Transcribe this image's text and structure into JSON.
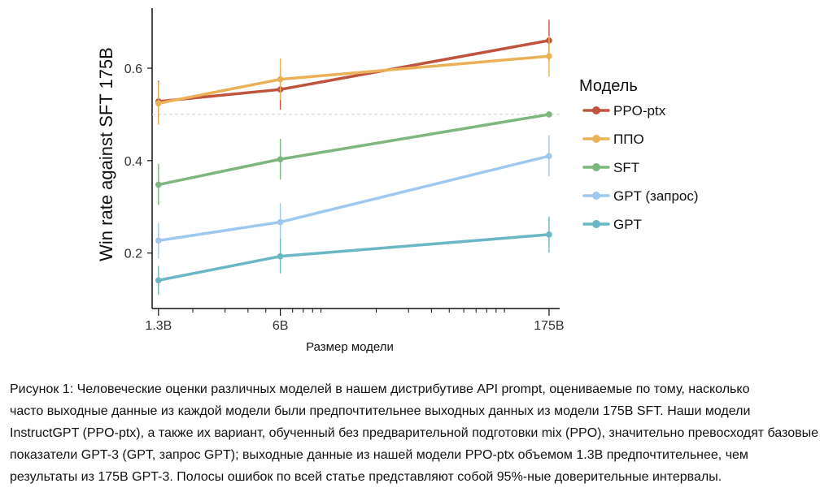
{
  "chart_data": {
    "type": "line",
    "title": "",
    "xlabel": "Размер модели",
    "ylabel": "Win rate against SFT 175B",
    "x_scale": "log",
    "x": [
      1.3,
      6,
      175
    ],
    "x_tick_labels": [
      "1.3B",
      "6B",
      "175B"
    ],
    "xlim": [
      1.2,
      200
    ],
    "y_ticks": [
      0.2,
      0.4,
      0.6
    ],
    "ylim": [
      0.08,
      0.73
    ],
    "reference_line": 0.5,
    "legend_title": "Модель",
    "legend_position": "right",
    "grid": false,
    "series": [
      {
        "name": "PPO-ptx",
        "color": "#c0533d",
        "values": [
          0.528,
          0.554,
          0.66
        ],
        "ci_low": [
          0.482,
          0.51,
          0.616
        ],
        "ci_high": [
          0.573,
          0.597,
          0.705
        ]
      },
      {
        "name": "ППО",
        "color": "#ebb158",
        "values": [
          0.524,
          0.576,
          0.626
        ],
        "ci_low": [
          0.478,
          0.531,
          0.582
        ],
        "ci_high": [
          0.57,
          0.621,
          0.67
        ]
      },
      {
        "name": "SFT",
        "color": "#7db67e",
        "values": [
          0.348,
          0.403,
          0.5
        ],
        "ci_low": [
          0.304,
          0.359,
          0.5
        ],
        "ci_high": [
          0.393,
          0.447,
          0.5
        ]
      },
      {
        "name": "GPT (запрос)",
        "color": "#9fc8ef",
        "values": [
          0.227,
          0.267,
          0.41
        ],
        "ci_low": [
          0.188,
          0.226,
          0.366
        ],
        "ci_high": [
          0.266,
          0.308,
          0.455
        ]
      },
      {
        "name": "GPT",
        "color": "#6ab8c4",
        "values": [
          0.141,
          0.193,
          0.24
        ],
        "ci_low": [
          0.11,
          0.156,
          0.201
        ],
        "ci_high": [
          0.172,
          0.231,
          0.279
        ]
      }
    ]
  },
  "caption": {
    "lines": [
      "Рисунок 1: Человеческие оценки различных моделей в нашем дистрибутиве API prompt, оцениваемые по тому, насколько",
      "часто выходные данные из каждой модели были предпочтительнее выходных данных из модели 175B SFT. Наши модели",
      "InstructGPT (PPO-ptx), а также их вариант, обученный без предварительной подготовки mix (PPO), значительно превосходят базовые",
      "показатели GPT-3 (GPT, запрос GPT); выходные данные из нашей модели PPO-ptx объемом 1.3B предпочтительнее, чем",
      "результаты из 175B GPT-3. Полосы ошибок по всей статье представляют собой 95%-ные доверительные интервалы."
    ]
  }
}
